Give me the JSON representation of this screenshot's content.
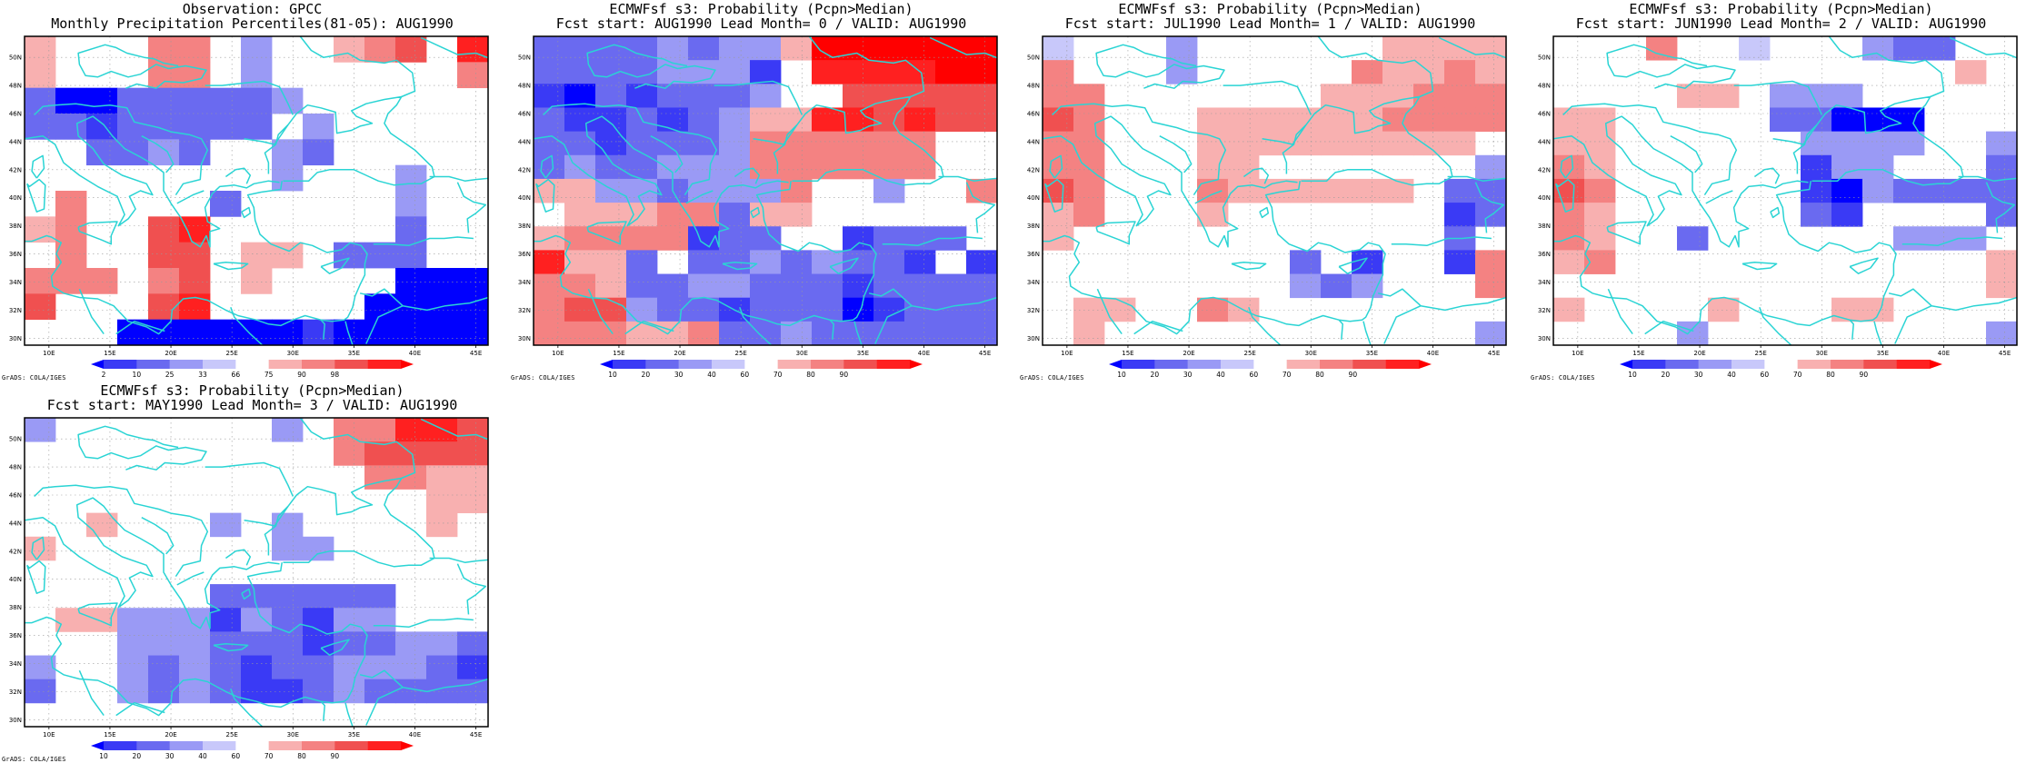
{
  "credit": "GrADS: COLA/IGES",
  "lon_labels": [
    "10E",
    "15E",
    "20E",
    "25E",
    "30E",
    "35E",
    "40E",
    "45E"
  ],
  "lat_labels": [
    "30N",
    "32N",
    "34N",
    "36N",
    "38N",
    "40N",
    "42N",
    "44N",
    "46N",
    "48N",
    "50N"
  ],
  "colors": {
    "b0": "#0000ff",
    "b1": "#3a3af5",
    "b2": "#6a6af0",
    "b3": "#9a9af5",
    "b4": "#c8c8fa",
    "w": "#ffffff",
    "r1": "#f8b0b0",
    "r2": "#f48282",
    "r3": "#f05050",
    "r4": "#ff2020",
    "r5": "#ff0000",
    "coast": "#2ad4d4",
    "grid": "#999999"
  },
  "panels": [
    {
      "title1": "Observation: GPCC",
      "title2": "Monthly Precipitation Percentiles(81-05): AUG1990",
      "legend_labels": [
        "2",
        "10",
        "25",
        "33",
        "66",
        "75",
        "90",
        "98"
      ],
      "grid": [
        "r1 w w w r2 r2 w b3 w w r1 r2 r3 w r4",
        "r1 w w w r2 r2 w b3 w w w w w w r2",
        "b2 b0 b0 b2 b2 b2 b2 b2 b3 w w w w w w",
        "b2 b2 b1 b2 b2 b2 b2 b2 w b3 w w w w w",
        "w w b2 b2 b3 b2 w w b3 b2 w w w w w",
        "w w w w w w w w b3 w w w b3 w w",
        "w r2 w w w w b2 w w w w w b3 w w",
        "r1 r2 w w r3 r4 w w w w w w b2 w w",
        "w r2 w w r3 r3 w r1 r1 w b2 b2 b2 w w",
        "r2 r2 r2 w r2 r3 w r1 w w w w b0 b0 b0",
        "r3 w w w r3 r4 w w w w w b0 b0 b0 b0",
        "w w w b0 b0 b0 b0 b0 b0 b1 b0 b0 b0 b0 b0"
      ]
    },
    {
      "title1": "ECMWFsf s3: Probability (Pcpn>Median)",
      "title2": "Fcst start: AUG1990  Lead Month= 0 / VALID: AUG1990",
      "legend_labels": [
        "10",
        "20",
        "30",
        "40",
        "60",
        "70",
        "80",
        "90"
      ],
      "grid": [
        "b2 b2 b2 b2 b3 b2 b3 b3 r1 r5 r5 r5 r5 r5 r5",
        "b2 b2 b2 b2 b3 b3 b3 b1 w r4 r4 r4 r4 r5 r5",
        "b1 b0 b2 b1 b2 b2 b2 b3 w w r3 r3 r3 r3 r3",
        "b2 b1 b1 b2 b1 b2 b3 r1 r1 r4 r4 r3 r4 r3 r3",
        "b2 b2 b1 b2 b2 b2 b3 r2 r2 r2 r2 r2 r2 w w",
        "b2 b3 b2 b2 b3 b3 b3 r2 r2 r2 r2 r2 r2 w w",
        "r1 r1 b3 b3 b2 b3 b3 b3 r2 w w b3 w w r2",
        "w r1 r1 r1 r2 r2 b2 r1 r1 w w w w w w",
        "r1 r2 r2 r2 r2 b1 b2 b2 w w b1 b2 b2 b2 w",
        "r4 r1 r1 b2 w b2 b2 b3 b2 b3 b2 b2 b1 w b1",
        "r2 r2 r1 b2 b2 b3 b3 b2 b2 b2 b1 b2 b2 b2 b2",
        "r2 r3 r3 b3 b2 b2 b1 b2 b2 b2 b0 b1 b2 b2 b2",
        "r2 r2 r2 r1 r1 r2 b2 b2 b3 b2 b2 b2 b2 b2 b2"
      ]
    },
    {
      "title1": "ECMWFsf s3: Probability (Pcpn>Median)",
      "title2": "Fcst start: JUL1990  Lead Month= 1 / VALID: AUG1990",
      "legend_labels": [
        "10",
        "20",
        "30",
        "40",
        "60",
        "70",
        "80",
        "90"
      ],
      "grid": [
        "b4 w w w b3 w w w w w w r1 r1 r1 r1",
        "r2 w w w b3 w w w w w r2 r1 r1 r2 r1",
        "r2 r2 w w w w w w w r1 r1 r1 r2 r2 r2",
        "r3 r2 w w w r1 r1 r1 r1 r1 r1 r2 r2 r2 r2",
        "r2 r2 w w w r1 r1 r1 r1 r1 r1 r1 r1 r1 w",
        "r2 r2 w w w r1 r1 w w w w w w w b3",
        "r3 r2 w w w r2 r1 r1 r1 r1 r1 r1 w b2 b2",
        "r1 r2 w w w r1 w w w w w w w b1 b2",
        "r1 w w w w w w w w w w w w b2 w",
        "w w w w w w w w b2 w b1 w w b1 r2",
        "w w w w w w w w b3 b2 b3 w w w r2",
        "w r1 r1 w w r2 r1 w w w w w w w w",
        "w r1 w w w w w w w w w w w w b3"
      ]
    },
    {
      "title1": "ECMWFsf s3: Probability (Pcpn>Median)",
      "title2": "Fcst start: JUN1990  Lead Month= 2 / VALID: AUG1990",
      "legend_labels": [
        "10",
        "20",
        "30",
        "40",
        "60",
        "70",
        "80",
        "90"
      ],
      "grid": [
        "w w w r2 w w b4 w w w b3 b2 b2 w w",
        "w w w w w w w w w w w w w r1 w",
        "w w w w r1 r1 w b3 b3 b3 w w w w w",
        "r1 r1 w w w w w b2 b2 b0 b0 b0 w w w",
        "r1 r1 w w w w w w b3 b3 b3 b3 w w b3",
        "r2 r1 w w w w w w b1 b3 b3 w w w b2",
        "r3 r2 w w w w w w b1 b0 b3 b2 b2 b2 b2",
        "r2 r1 w w w w w w b2 b1 w w w w b2",
        "r2 r1 w w b2 w w w w w w b3 b3 b3 w",
        "r1 r2 w w w w w w w w w w w w r1",
        "w w w w w w w w w w w w w w r1",
        "r1 w w w w r1 w w w r1 r1 w w w w",
        "w w w w b3 w w w w w w w w w b3"
      ]
    },
    {
      "title1": "ECMWFsf s3: Probability (Pcpn>Median)",
      "title2": "Fcst start: MAY1990  Lead Month= 3 / VALID: AUG1990",
      "legend_labels": [
        "10",
        "20",
        "30",
        "40",
        "60",
        "70",
        "80",
        "90"
      ],
      "grid": [
        "b3 w w w w w w w b3 w r2 r2 r4 r4 r3",
        "w w w w w w w w w w r2 r3 r3 r3 r3",
        "w w w w w w w w w w w r2 r2 r1 r1",
        "w w w w w w w w w w w w w r1 r1",
        "w w r1 w w w b3 w b3 w w w w r1 w",
        "r1 w w w w w w w b3 b3 w w w w w",
        "w w w w w w w w w w w w w w w",
        "w w w w w w b2 b2 b2 b2 b2 b2 w w w",
        "w r1 r1 b3 b3 b3 b1 b3 b2 b1 b3 b3 w w w",
        "w w w b3 b3 b3 b2 b2 b2 b1 b2 b2 b3 b3 b2",
        "b3 w w b3 b2 b3 b2 b1 b2 b2 b3 b3 b3 b2 b1",
        "b2 w w b3 b2 b3 b2 b1 b1 b2 b3 b2 b2 b2 b2",
        "w w w w w w w w w w w w w w w"
      ]
    }
  ]
}
